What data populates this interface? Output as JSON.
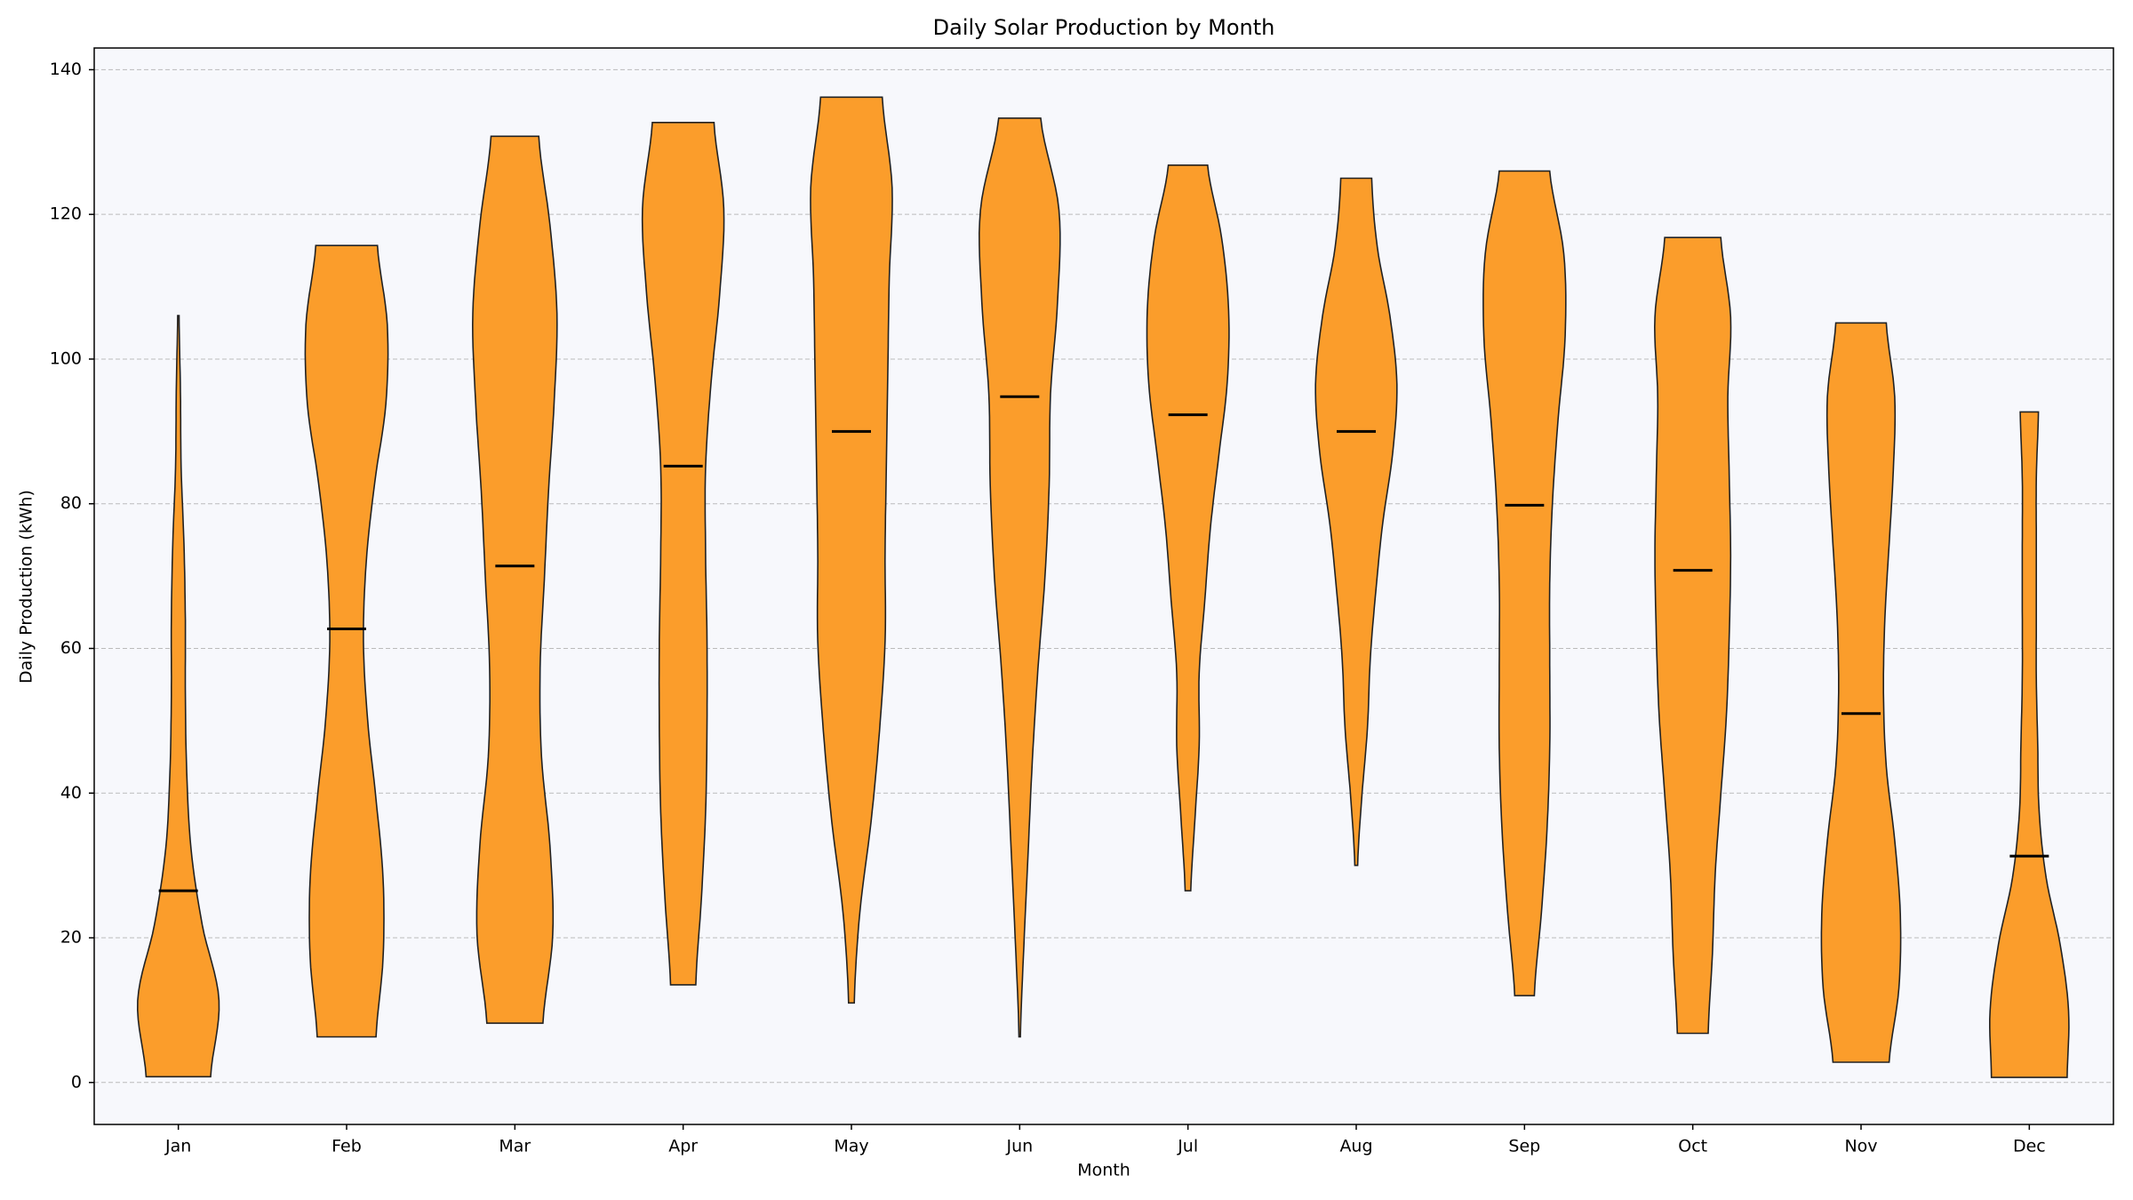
{
  "chart_data": {
    "type": "violin",
    "title": "Daily Solar Production by Month",
    "x_label": "Month",
    "y_label": "Daily Production (kWh)",
    "categories": [
      "Jan",
      "Feb",
      "Mar",
      "Apr",
      "May",
      "Jun",
      "Jul",
      "Aug",
      "Sep",
      "Oct",
      "Nov",
      "Dec"
    ],
    "min": [
      0.8,
      6.3,
      8.2,
      13.5,
      11,
      6.3,
      26.5,
      30,
      12,
      6.8,
      2.8,
      0.7
    ],
    "max": [
      106,
      115.7,
      130.8,
      132.7,
      136.2,
      133.3,
      126.8,
      125,
      126,
      116.8,
      105,
      92.7
    ],
    "median": [
      26.5,
      62.7,
      71.4,
      85.2,
      90,
      94.8,
      92.3,
      90,
      79.8,
      70.8,
      51,
      31.3
    ],
    "density": [
      [
        23,
        29,
        17,
        9,
        6,
        5,
        5,
        4,
        2,
        1.5,
        0.5
      ],
      [
        21,
        26,
        26,
        21,
        15,
        12,
        14,
        20,
        28,
        29,
        22
      ],
      [
        20,
        27,
        25,
        19,
        18,
        21,
        24,
        28,
        30,
        25,
        17
      ],
      [
        9,
        13,
        16,
        17,
        17,
        16,
        16,
        20,
        26,
        29,
        22
      ],
      [
        2,
        6,
        14,
        20,
        24,
        24,
        25,
        26,
        27,
        29,
        22
      ],
      [
        0.5,
        3,
        6,
        9,
        13,
        18,
        21,
        22,
        27,
        28,
        15
      ],
      [
        2,
        5,
        8,
        8,
        12,
        16,
        22,
        28,
        29,
        24,
        14
      ],
      [
        1,
        4,
        8,
        10,
        14,
        19,
        26,
        29,
        24,
        15,
        11
      ],
      [
        7,
        12,
        16,
        18,
        18,
        18,
        20,
        24,
        29,
        28,
        18
      ],
      [
        11,
        14,
        16,
        20,
        24,
        26,
        27,
        26,
        25,
        27,
        20
      ],
      [
        20,
        27,
        28,
        24,
        18,
        16,
        17,
        20,
        23,
        24,
        18
      ],
      [
        27,
        28,
        22,
        12,
        7,
        6,
        5,
        5,
        5,
        5,
        6.5
      ]
    ],
    "color": "#fb9d2b",
    "show_median": true,
    "ylim": [
      -5.8,
      143
    ],
    "yticks": [
      0,
      20,
      40,
      60,
      80,
      100,
      120,
      140
    ],
    "grid": true
  }
}
